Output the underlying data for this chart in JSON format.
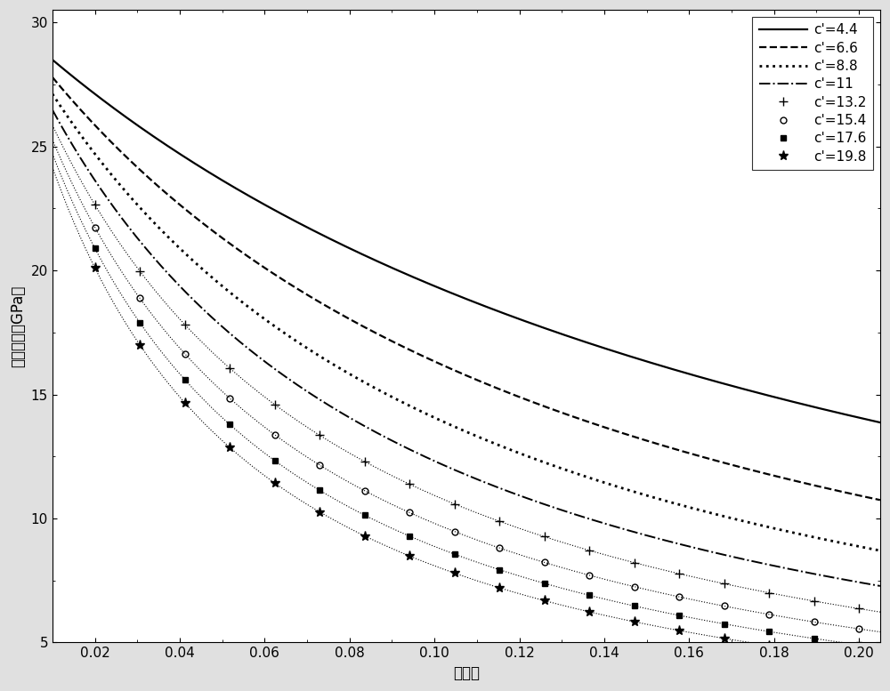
{
  "xlabel": "孔隙度",
  "ylabel": "剪切模量（GPa）",
  "xlim": [
    0.01,
    0.205
  ],
  "ylim": [
    5,
    30.5
  ],
  "xticks": [
    0.02,
    0.04,
    0.06,
    0.08,
    0.1,
    0.12,
    0.14,
    0.16,
    0.18,
    0.2
  ],
  "yticks": [
    5,
    10,
    15,
    20,
    25,
    30
  ],
  "G0": 30.0,
  "n_exp": 1.2,
  "curves": [
    {
      "c_prime": 4.4,
      "label": "c'=4.4",
      "linestyle": "-",
      "marker": null,
      "lw": 1.6
    },
    {
      "c_prime": 6.6,
      "label": "c'=6.6",
      "linestyle": "--",
      "marker": null,
      "lw": 1.6
    },
    {
      "c_prime": 8.8,
      "label": "c'=8.8",
      "linestyle": ":",
      "marker": null,
      "lw": 2.0
    },
    {
      "c_prime": 11.0,
      "label": "c'=11",
      "linestyle": "-.",
      "marker": null,
      "lw": 1.4
    },
    {
      "c_prime": 13.2,
      "label": "c'=13.2",
      "linestyle": ":",
      "marker": "+",
      "lw": 0.9
    },
    {
      "c_prime": 15.4,
      "label": "c'=15.4",
      "linestyle": ":",
      "marker": "o",
      "lw": 0.9
    },
    {
      "c_prime": 17.6,
      "label": "c'=17.6",
      "linestyle": ":",
      "marker": "s",
      "lw": 0.9
    },
    {
      "c_prime": 19.8,
      "label": "c'=19.8",
      "linestyle": ":",
      "marker": "*",
      "lw": 0.9
    }
  ],
  "n_marker_points": 18,
  "legend_fontsize": 11,
  "tick_fontsize": 11,
  "label_fontsize": 12,
  "fig_facecolor": "#e0e0e0",
  "ax_facecolor": "#ffffff"
}
